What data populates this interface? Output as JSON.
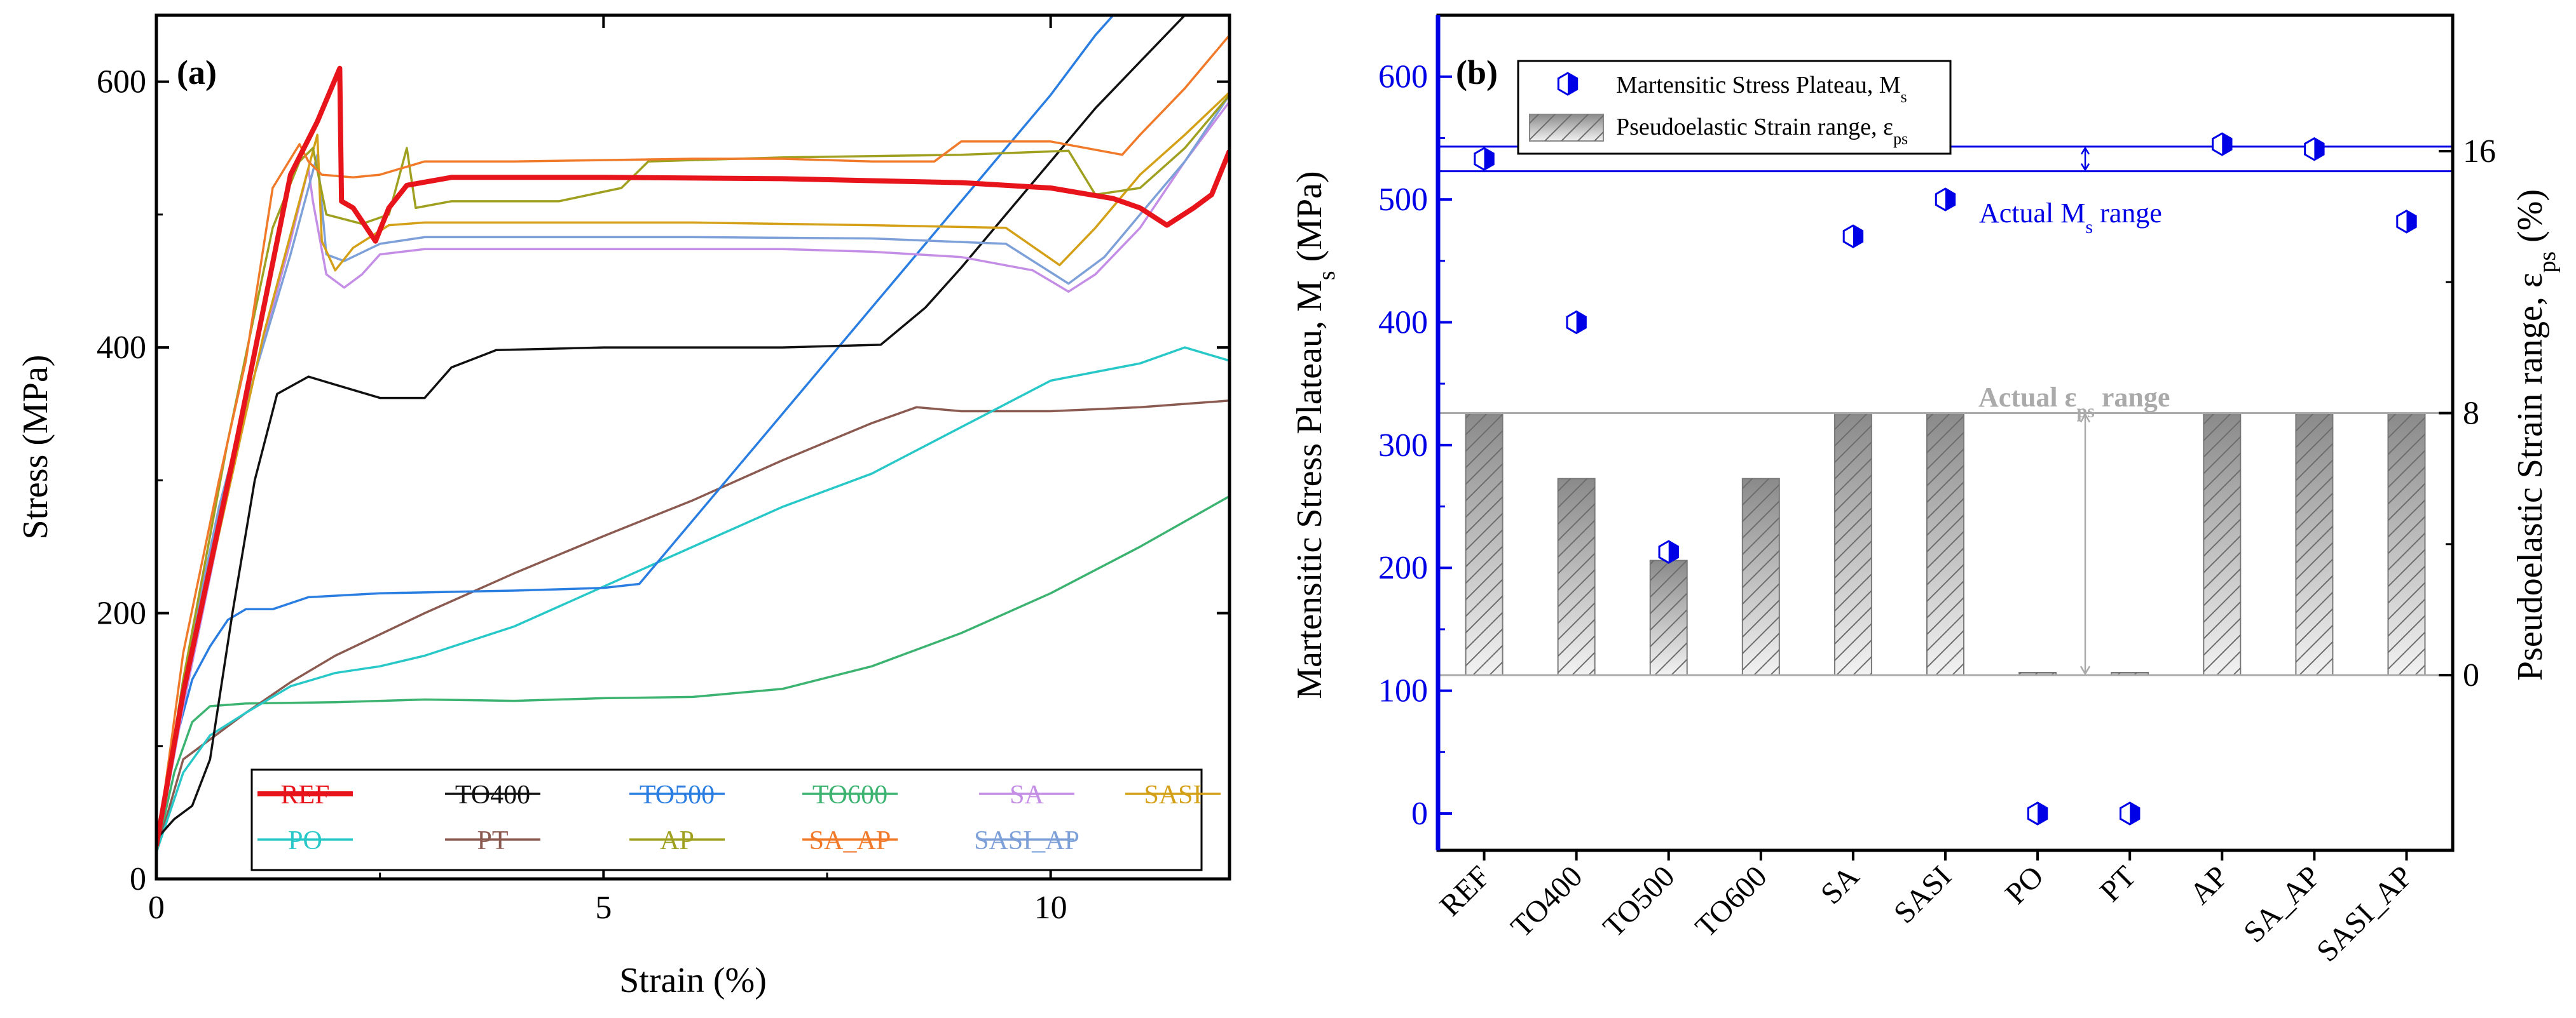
{
  "colors": {
    "REF": "#e8141c",
    "TO400": "#111111",
    "TO500": "#2a7de1",
    "TO600": "#3cb371",
    "SA": "#c48ee6",
    "SASI": "#d4a017",
    "PO": "#28c8c8",
    "PT": "#8b5a50",
    "AP": "#a0a020",
    "SA_AP": "#f07a2a",
    "SASI_AP": "#7ea0d8",
    "blue_axis": "#0000e6",
    "grey_ref": "#aaaaaa"
  },
  "chart_data": [
    {
      "type": "line",
      "panel_label": "(a)",
      "xlabel": "Strain (%)",
      "ylabel": "Stress (MPa)",
      "xlim": [
        0,
        12
      ],
      "ylim": [
        0,
        650
      ],
      "x_ticks": [
        0,
        5,
        10
      ],
      "x_tick_labels": [
        "0",
        "5",
        "10"
      ],
      "y_ticks": [
        0,
        200,
        400,
        600
      ],
      "y_tick_labels": [
        "0",
        "200",
        "400",
        "600"
      ],
      "legend_position": "bottom-right",
      "series": [
        {
          "name": "REF",
          "points": [
            [
              0,
              25
            ],
            [
              0.3,
              140
            ],
            [
              0.9,
              330
            ],
            [
              1.5,
              530
            ],
            [
              1.8,
              570
            ],
            [
              2.05,
              610
            ],
            [
              2.07,
              510
            ],
            [
              2.2,
              505
            ],
            [
              2.45,
              480
            ],
            [
              2.6,
              505
            ],
            [
              2.8,
              522
            ],
            [
              3.3,
              528
            ],
            [
              5,
              528
            ],
            [
              7,
              527
            ],
            [
              9,
              524
            ],
            [
              10,
              520
            ],
            [
              10.7,
              512
            ],
            [
              11,
              505
            ],
            [
              11.3,
              492
            ],
            [
              11.6,
              505
            ],
            [
              11.8,
              515
            ],
            [
              12,
              548
            ]
          ]
        },
        {
          "name": "TO400",
          "points": [
            [
              0,
              30
            ],
            [
              0.2,
              45
            ],
            [
              0.4,
              55
            ],
            [
              0.6,
              90
            ],
            [
              0.85,
              200
            ],
            [
              1.1,
              300
            ],
            [
              1.35,
              365
            ],
            [
              1.7,
              378
            ],
            [
              2.0,
              372
            ],
            [
              2.5,
              362
            ],
            [
              3.0,
              362
            ],
            [
              3.3,
              385
            ],
            [
              3.8,
              398
            ],
            [
              5,
              400
            ],
            [
              6,
              400
            ],
            [
              7,
              400
            ],
            [
              8.1,
              402
            ],
            [
              8.6,
              430
            ],
            [
              9,
              460
            ],
            [
              9.5,
              500
            ],
            [
              10,
              540
            ],
            [
              10.5,
              580
            ],
            [
              11,
              615
            ],
            [
              11.5,
              650
            ]
          ]
        },
        {
          "name": "TO500",
          "points": [
            [
              0,
              25
            ],
            [
              0.2,
              100
            ],
            [
              0.4,
              150
            ],
            [
              0.6,
              175
            ],
            [
              0.8,
              195
            ],
            [
              1.0,
              203
            ],
            [
              1.3,
              203
            ],
            [
              1.7,
              212
            ],
            [
              2.5,
              215
            ],
            [
              4,
              217
            ],
            [
              5,
              219
            ],
            [
              5.4,
              222
            ],
            [
              6,
              270
            ],
            [
              7,
              350
            ],
            [
              8,
              430
            ],
            [
              9,
              510
            ],
            [
              10,
              590
            ],
            [
              10.5,
              635
            ],
            [
              10.7,
              650
            ]
          ]
        },
        {
          "name": "TO600",
          "points": [
            [
              0,
              20
            ],
            [
              0.2,
              80
            ],
            [
              0.4,
              118
            ],
            [
              0.6,
              130
            ],
            [
              1,
              132
            ],
            [
              2,
              133
            ],
            [
              3,
              135
            ],
            [
              4,
              134
            ],
            [
              5,
              136
            ],
            [
              6,
              137
            ],
            [
              7,
              143
            ],
            [
              8,
              160
            ],
            [
              9,
              185
            ],
            [
              10,
              215
            ],
            [
              11,
              250
            ],
            [
              12,
              288
            ]
          ]
        },
        {
          "name": "SA",
          "points": [
            [
              0,
              20
            ],
            [
              0.3,
              130
            ],
            [
              0.7,
              260
            ],
            [
              1.1,
              380
            ],
            [
              1.5,
              480
            ],
            [
              1.7,
              535
            ],
            [
              1.75,
              510
            ],
            [
              1.9,
              455
            ],
            [
              2.1,
              445
            ],
            [
              2.3,
              455
            ],
            [
              2.5,
              470
            ],
            [
              3,
              474
            ],
            [
              4,
              474
            ],
            [
              5,
              474
            ],
            [
              6,
              474
            ],
            [
              7,
              474
            ],
            [
              8,
              472
            ],
            [
              9,
              468
            ],
            [
              9.8,
              458
            ],
            [
              10.2,
              442
            ],
            [
              10.5,
              455
            ],
            [
              11,
              490
            ],
            [
              11.5,
              540
            ],
            [
              12,
              585
            ]
          ]
        },
        {
          "name": "SASI",
          "points": [
            [
              0,
              20
            ],
            [
              0.3,
              140
            ],
            [
              0.8,
              290
            ],
            [
              1.2,
              410
            ],
            [
              1.6,
              510
            ],
            [
              1.8,
              560
            ],
            [
              1.85,
              480
            ],
            [
              2.0,
              458
            ],
            [
              2.2,
              475
            ],
            [
              2.6,
              492
            ],
            [
              3,
              494
            ],
            [
              4,
              494
            ],
            [
              6,
              494
            ],
            [
              8,
              492
            ],
            [
              9.5,
              490
            ],
            [
              10.1,
              462
            ],
            [
              10.5,
              490
            ],
            [
              11,
              530
            ],
            [
              11.5,
              560
            ],
            [
              12,
              592
            ]
          ]
        },
        {
          "name": "PO",
          "points": [
            [
              0,
              20
            ],
            [
              0.3,
              80
            ],
            [
              0.6,
              108
            ],
            [
              1,
              125
            ],
            [
              1.5,
              145
            ],
            [
              2,
              155
            ],
            [
              2.5,
              160
            ],
            [
              3,
              168
            ],
            [
              4,
              190
            ],
            [
              5,
              220
            ],
            [
              6,
              250
            ],
            [
              7,
              280
            ],
            [
              8,
              305
            ],
            [
              9,
              340
            ],
            [
              10,
              375
            ],
            [
              11,
              388
            ],
            [
              11.5,
              400
            ],
            [
              12,
              390
            ]
          ]
        },
        {
          "name": "PT",
          "points": [
            [
              0,
              20
            ],
            [
              0.3,
              90
            ],
            [
              0.7,
              110
            ],
            [
              1,
              125
            ],
            [
              1.5,
              148
            ],
            [
              2,
              168
            ],
            [
              3,
              200
            ],
            [
              4,
              230
            ],
            [
              5,
              258
            ],
            [
              6,
              285
            ],
            [
              7,
              315
            ],
            [
              8,
              343
            ],
            [
              8.5,
              355
            ],
            [
              9,
              352
            ],
            [
              10,
              352
            ],
            [
              11,
              355
            ],
            [
              12,
              360
            ]
          ]
        },
        {
          "name": "AP",
          "points": [
            [
              0,
              20
            ],
            [
              0.3,
              150
            ],
            [
              0.8,
              330
            ],
            [
              1.3,
              490
            ],
            [
              1.6,
              540
            ],
            [
              1.75,
              550
            ],
            [
              1.9,
              500
            ],
            [
              2.3,
              493
            ],
            [
              2.6,
              500
            ],
            [
              2.8,
              550
            ],
            [
              2.9,
              505
            ],
            [
              3.3,
              510
            ],
            [
              4.5,
              510
            ],
            [
              5.2,
              520
            ],
            [
              5.5,
              540
            ],
            [
              7,
              543
            ],
            [
              9,
              545
            ],
            [
              10.2,
              548
            ],
            [
              10.5,
              515
            ],
            [
              11,
              520
            ],
            [
              11.5,
              550
            ],
            [
              12,
              590
            ]
          ]
        },
        {
          "name": "SA_AP",
          "points": [
            [
              0,
              20
            ],
            [
              0.3,
              170
            ],
            [
              0.7,
              300
            ],
            [
              1.0,
              390
            ],
            [
              1.3,
              520
            ],
            [
              1.6,
              553
            ],
            [
              1.7,
              540
            ],
            [
              1.85,
              530
            ],
            [
              2.2,
              528
            ],
            [
              2.5,
              530
            ],
            [
              3,
              540
            ],
            [
              4,
              540
            ],
            [
              5,
              541
            ],
            [
              6,
              542
            ],
            [
              7,
              542
            ],
            [
              8,
              540
            ],
            [
              8.7,
              540
            ],
            [
              9,
              555
            ],
            [
              10,
              555
            ],
            [
              10.8,
              545
            ],
            [
              11,
              560
            ],
            [
              11.5,
              595
            ],
            [
              12,
              635
            ]
          ]
        },
        {
          "name": "SASI_AP",
          "points": [
            [
              0,
              20
            ],
            [
              0.3,
              150
            ],
            [
              0.7,
              280
            ],
            [
              1.1,
              380
            ],
            [
              1.5,
              470
            ],
            [
              1.8,
              545
            ],
            [
              1.9,
              470
            ],
            [
              2.1,
              465
            ],
            [
              2.5,
              478
            ],
            [
              3,
              483
            ],
            [
              4,
              483
            ],
            [
              6,
              483
            ],
            [
              8,
              482
            ],
            [
              9.5,
              478
            ],
            [
              10.2,
              448
            ],
            [
              10.6,
              468
            ],
            [
              11,
              500
            ],
            [
              11.5,
              540
            ],
            [
              12,
              590
            ]
          ]
        }
      ]
    },
    {
      "type": "bar",
      "panel_label": "(b)",
      "categories": [
        "REF",
        "TO400",
        "TO500",
        "TO600",
        "SA",
        "SASI",
        "PO",
        "PT",
        "AP",
        "SA_AP",
        "SASI_AP"
      ],
      "xlabel": "",
      "ylabel": "Martensitic Stress Plateau, M",
      "ylabel_sub": "s",
      "ylabel_tail": " (MPa)",
      "y2label": "Pseudoelastic Strain range, ε",
      "y2label_sub": "ps",
      "y2label_tail": " (%)",
      "ylim": [
        -30,
        650
      ],
      "y_ticks": [
        0,
        100,
        200,
        300,
        400,
        500,
        600
      ],
      "y_tick_labels": [
        "0",
        "100",
        "200",
        "300",
        "400",
        "500",
        "600"
      ],
      "y2lim": [
        -5.35,
        20.15
      ],
      "y2_ticks": [
        0,
        8,
        16
      ],
      "y2_tick_labels": [
        "0",
        "8",
        "16"
      ],
      "stress_plateau_Ms": [
        533,
        400,
        213,
        null,
        470,
        500,
        0,
        0,
        545,
        541,
        482
      ],
      "strain_range_eps": [
        8,
        6,
        3.5,
        6,
        8,
        8,
        0.08,
        0.08,
        8,
        8,
        8
      ],
      "reference_lines": {
        "Ms_range_MPa": [
          523,
          543
        ],
        "Ms_range_label": "Actual M",
        "Ms_range_label_sub": "s",
        "Ms_range_label_tail": " range",
        "eps_range_percent": [
          0,
          8
        ],
        "eps_range_label": "Actual ε",
        "eps_range_label_sub": "ps",
        "eps_range_label_tail": " range"
      },
      "legend_position": "top-left",
      "legend": [
        {
          "label": "Martensitic Stress Plateau, M",
          "sub": "s",
          "marker": "hexagon-half-filled"
        },
        {
          "label": "Pseudoelastic Strain range, ε",
          "sub": "ps",
          "marker": "hatched-gradient-bar"
        }
      ]
    }
  ]
}
